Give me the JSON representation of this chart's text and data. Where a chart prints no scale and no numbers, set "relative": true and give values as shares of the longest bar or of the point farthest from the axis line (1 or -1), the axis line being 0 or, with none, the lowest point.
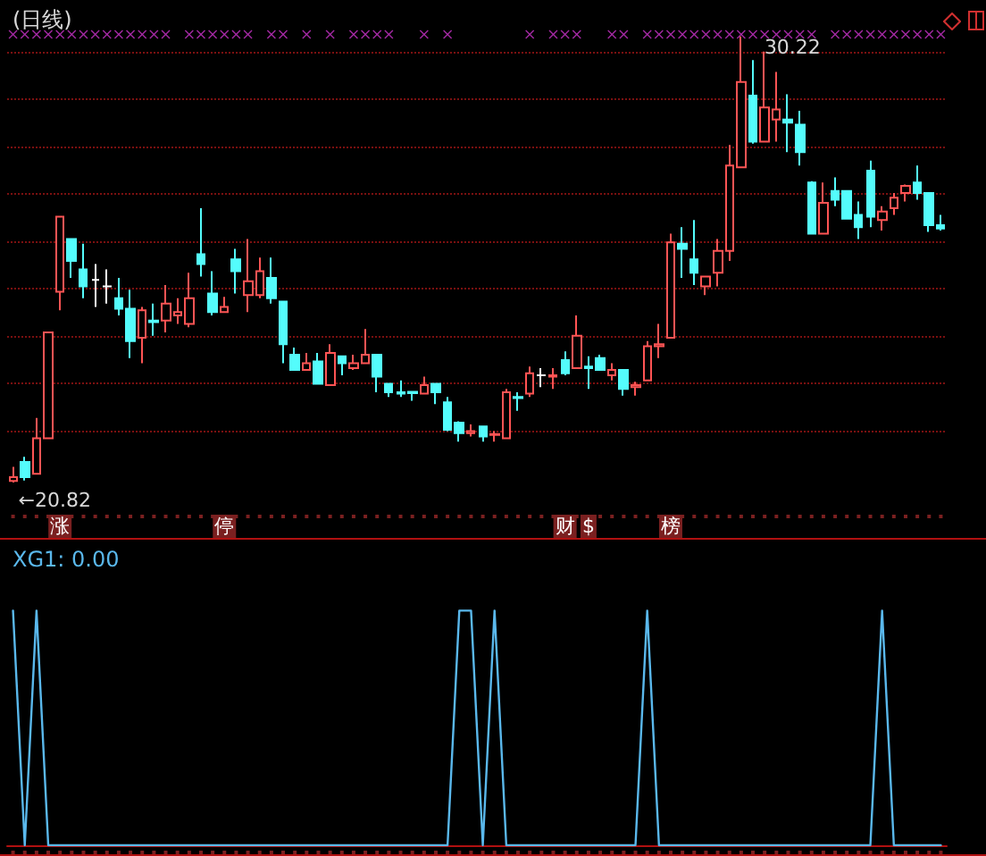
{
  "chart_data": [
    {
      "type": "candlestick",
      "title": "(日线)",
      "categories": [
        null,
        null,
        null,
        null,
        "涨",
        null,
        null,
        null,
        null,
        null,
        null,
        null,
        null,
        null,
        null,
        null,
        null,
        null,
        "停",
        null,
        null,
        null,
        null,
        null,
        null,
        null,
        null,
        null,
        null,
        null,
        null,
        null,
        null,
        null,
        null,
        null,
        null,
        null,
        null,
        null,
        null,
        null,
        null,
        null,
        null,
        null,
        null,
        "财",
        null,
        "$",
        null,
        null,
        null,
        null,
        null,
        null,
        "榜",
        null,
        null,
        null,
        null,
        null,
        null,
        null,
        null,
        null,
        null,
        null,
        null,
        null,
        null,
        null,
        null,
        null,
        null,
        null,
        null,
        null,
        null,
        null
      ],
      "ohlc": [
        [
          20.85,
          21.15,
          20.82,
          20.93
        ],
        [
          21.25,
          21.36,
          20.86,
          20.93
        ],
        [
          21.0,
          22.18,
          21.0,
          21.75
        ],
        [
          21.75,
          23.98,
          21.75,
          23.98
        ],
        [
          24.84,
          26.42,
          24.45,
          26.42
        ],
        [
          25.95,
          25.95,
          25.13,
          25.49
        ],
        [
          25.31,
          25.85,
          24.7,
          24.95
        ],
        [
          25.09,
          25.42,
          24.52,
          25.09
        ],
        [
          24.95,
          25.31,
          24.59,
          24.95
        ],
        [
          24.7,
          25.13,
          24.34,
          24.48
        ],
        [
          24.48,
          24.88,
          23.44,
          23.8
        ],
        [
          23.87,
          24.52,
          23.33,
          24.45
        ],
        [
          24.23,
          24.59,
          23.91,
          24.2
        ],
        [
          24.23,
          24.98,
          23.98,
          24.59
        ],
        [
          24.34,
          24.7,
          24.16,
          24.41
        ],
        [
          24.16,
          25.24,
          24.09,
          24.7
        ],
        [
          25.63,
          26.6,
          25.16,
          25.42
        ],
        [
          24.8,
          25.27,
          24.34,
          24.41
        ],
        [
          24.41,
          24.73,
          24.41,
          24.52
        ],
        [
          25.52,
          25.74,
          24.8,
          25.27
        ],
        [
          24.77,
          25.95,
          24.41,
          25.06
        ],
        [
          24.77,
          25.56,
          24.7,
          25.27
        ],
        [
          25.13,
          25.56,
          24.59,
          24.7
        ],
        [
          24.63,
          24.63,
          23.33,
          23.73
        ],
        [
          23.51,
          23.66,
          23.19,
          23.19
        ],
        [
          23.19,
          23.55,
          23.19,
          23.33
        ],
        [
          23.37,
          23.55,
          22.9,
          22.9
        ],
        [
          22.87,
          23.73,
          22.87,
          23.55
        ],
        [
          23.48,
          23.48,
          23.08,
          23.33
        ],
        [
          23.23,
          23.51,
          23.19,
          23.33
        ],
        [
          23.33,
          24.05,
          23.33,
          23.51
        ],
        [
          23.51,
          23.51,
          22.72,
          23.05
        ],
        [
          22.9,
          22.9,
          22.62,
          22.72
        ],
        [
          22.72,
          22.97,
          22.62,
          22.69
        ],
        [
          22.73,
          22.73,
          22.54,
          22.7
        ],
        [
          22.69,
          23.05,
          22.69,
          22.87
        ],
        [
          22.9,
          22.9,
          22.47,
          22.72
        ],
        [
          22.51,
          22.62,
          21.9,
          21.93
        ],
        [
          22.08,
          22.11,
          21.68,
          21.86
        ],
        [
          21.86,
          22.04,
          21.79,
          21.9
        ],
        [
          22.0,
          22.0,
          21.68,
          21.79
        ],
        [
          21.82,
          21.9,
          21.68,
          21.84
        ],
        [
          21.75,
          22.79,
          21.75,
          22.72
        ],
        [
          22.62,
          22.72,
          22.33,
          22.6
        ],
        [
          22.69,
          23.26,
          22.62,
          23.12
        ],
        [
          23.08,
          23.23,
          22.83,
          23.08
        ],
        [
          23.05,
          23.23,
          22.79,
          23.08
        ],
        [
          23.4,
          23.58,
          23.08,
          23.12
        ],
        [
          23.23,
          24.34,
          23.23,
          23.91
        ],
        [
          23.26,
          23.48,
          22.79,
          23.23
        ],
        [
          23.44,
          23.51,
          23.19,
          23.19
        ],
        [
          23.08,
          23.33,
          22.97,
          23.19
        ],
        [
          23.19,
          23.19,
          22.65,
          22.79
        ],
        [
          22.83,
          22.94,
          22.65,
          22.87
        ],
        [
          22.97,
          23.8,
          22.97,
          23.69
        ],
        [
          23.69,
          24.16,
          23.44,
          23.73
        ],
        [
          23.87,
          26.06,
          23.87,
          25.88
        ],
        [
          25.85,
          26.2,
          25.13,
          25.74
        ],
        [
          25.52,
          26.35,
          24.98,
          25.24
        ],
        [
          24.95,
          25.16,
          24.77,
          25.16
        ],
        [
          25.24,
          25.95,
          24.95,
          25.7
        ],
        [
          25.7,
          27.93,
          25.49,
          27.5
        ],
        [
          27.46,
          30.22,
          27.46,
          29.26
        ],
        [
          28.97,
          29.72,
          27.96,
          28.0
        ],
        [
          28.0,
          29.9,
          28.0,
          28.72
        ],
        [
          28.47,
          29.47,
          28.0,
          28.68
        ],
        [
          28.47,
          29.0,
          27.78,
          28.4
        ],
        [
          28.36,
          28.65,
          27.5,
          27.78
        ],
        [
          27.14,
          27.17,
          26.06,
          26.06
        ],
        [
          26.06,
          27.14,
          26.06,
          26.71
        ],
        [
          26.96,
          27.25,
          26.64,
          26.78
        ],
        [
          26.96,
          26.96,
          26.38,
          26.38
        ],
        [
          26.46,
          26.74,
          25.95,
          26.2
        ],
        [
          27.39,
          27.6,
          26.2,
          26.42
        ],
        [
          26.35,
          26.64,
          26.13,
          26.53
        ],
        [
          26.6,
          26.92,
          26.46,
          26.82
        ],
        [
          26.92,
          27.1,
          26.74,
          27.07
        ],
        [
          27.14,
          27.5,
          26.78,
          26.92
        ],
        [
          26.92,
          26.92,
          26.1,
          26.24
        ],
        [
          26.24,
          26.46,
          26.13,
          26.17
        ]
      ],
      "colors": [
        "#ff5454",
        "#54fcfc",
        "#ff5454",
        "#ff5454",
        "#ff5454",
        "#54fcfc",
        "#54fcfc",
        "#ffffff",
        "#ffffff",
        "#54fcfc",
        "#54fcfc",
        "#ff5454",
        "#54fcfc",
        "#ff5454",
        "#ff5454",
        "#ff5454",
        "#54fcfc",
        "#54fcfc",
        "#ff5454",
        "#54fcfc",
        "#ff5454",
        "#ff5454",
        "#54fcfc",
        "#54fcfc",
        "#54fcfc",
        "#ff5454",
        "#54fcfc",
        "#ff5454",
        "#54fcfc",
        "#ff5454",
        "#ff5454",
        "#54fcfc",
        "#54fcfc",
        "#54fcfc",
        "#54fcfc",
        "#ff5454",
        "#54fcfc",
        "#54fcfc",
        "#54fcfc",
        "#ff5454",
        "#54fcfc",
        "#ff5454",
        "#ff5454",
        "#54fcfc",
        "#ff5454",
        "#ffffff",
        "#ff5454",
        "#54fcfc",
        "#ff5454",
        "#54fcfc",
        "#54fcfc",
        "#ff5454",
        "#54fcfc",
        "#ff5454",
        "#ff5454",
        "#ff5454",
        "#ff5454",
        "#54fcfc",
        "#54fcfc",
        "#ff5454",
        "#ff5454",
        "#ff5454",
        "#ff5454",
        "#54fcfc",
        "#ff5454",
        "#ff5454",
        "#54fcfc",
        "#54fcfc",
        "#54fcfc",
        "#ff5454",
        "#54fcfc",
        "#54fcfc",
        "#54fcfc",
        "#54fcfc",
        "#ff5454",
        "#ff5454",
        "#ff5454",
        "#54fcfc",
        "#54fcfc",
        "#54fcfc"
      ],
      "series": [
        {
          "type": "scatter",
          "marker": "cross",
          "color": "#cc33cc",
          "values": [
            30.26,
            30.26,
            30.26,
            30.26,
            30.26,
            30.26,
            30.26,
            30.26,
            30.26,
            30.26,
            30.26,
            30.26,
            30.26,
            30.26,
            null,
            30.26,
            30.26,
            30.26,
            30.26,
            30.26,
            30.26,
            null,
            30.26,
            30.26,
            null,
            30.26,
            null,
            30.26,
            null,
            30.26,
            30.26,
            30.26,
            30.26,
            null,
            null,
            30.26,
            null,
            30.26,
            null,
            null,
            null,
            null,
            null,
            null,
            30.26,
            null,
            30.26,
            30.26,
            30.26,
            null,
            null,
            30.26,
            30.26,
            null,
            30.26,
            30.26,
            30.26,
            30.26,
            30.26,
            30.26,
            30.26,
            30.26,
            30.26,
            30.26,
            30.26,
            30.26,
            30.26,
            30.26,
            30.26,
            null,
            30.26,
            30.26,
            30.26,
            30.26,
            30.26,
            30.26,
            30.26,
            30.26,
            30.26,
            30.26
          ]
        }
      ],
      "yticks": [
        {
          "value": 21.9,
          "label": null
        },
        {
          "value": 22.9,
          "label": null
        },
        {
          "value": 23.9,
          "label": null
        },
        {
          "value": 24.9,
          "label": null
        },
        {
          "value": 25.9,
          "label": null
        },
        {
          "value": 26.9,
          "label": null
        },
        {
          "value": 27.9,
          "label": null
        },
        {
          "value": 28.9,
          "label": null
        },
        {
          "value": 29.9,
          "label": null
        }
      ],
      "grid": "y",
      "tick_labels": "x",
      "annotations": [
        {
          "text": "30.22",
          "y": 30.22
        },
        "←20.82"
      ]
    },
    {
      "type": "line",
      "title": "XG1: 0.00",
      "relative": true,
      "categories": [
        null,
        null,
        null,
        null,
        null,
        null,
        null,
        null,
        null,
        null,
        null,
        null,
        null,
        null,
        null,
        null,
        null,
        null,
        null,
        null,
        null,
        null,
        null,
        null,
        null,
        null,
        null,
        null,
        null,
        null,
        null,
        null,
        null,
        null,
        null,
        null,
        null,
        null,
        null,
        null,
        null,
        null,
        null,
        null,
        null,
        null,
        null,
        null,
        null,
        null,
        null,
        null,
        null,
        null,
        null,
        null,
        null,
        null,
        null,
        null,
        null,
        null,
        null,
        null,
        null,
        null,
        null,
        null,
        null,
        null,
        null,
        null,
        null,
        null,
        null,
        null,
        null,
        null,
        null,
        null
      ],
      "series": [
        {
          "color": "#5ab8ec",
          "values": [
            1,
            0,
            1,
            0,
            0,
            0,
            0,
            0,
            0,
            0,
            0,
            0,
            0,
            0,
            0,
            0,
            0,
            0,
            0,
            0,
            0,
            0,
            0,
            0,
            0,
            0,
            0,
            0,
            0,
            0,
            0,
            0,
            0,
            0,
            0,
            0,
            0,
            0,
            1,
            1,
            0,
            1,
            0,
            0,
            0,
            0,
            0,
            0,
            0,
            0,
            0,
            0,
            0,
            0,
            1,
            0,
            0,
            0,
            0,
            0,
            0,
            0,
            0,
            0,
            0,
            0,
            0,
            0,
            0,
            0,
            0,
            0,
            0,
            0,
            1,
            0,
            0,
            0,
            0,
            0
          ]
        }
      ]
    }
  ]
}
